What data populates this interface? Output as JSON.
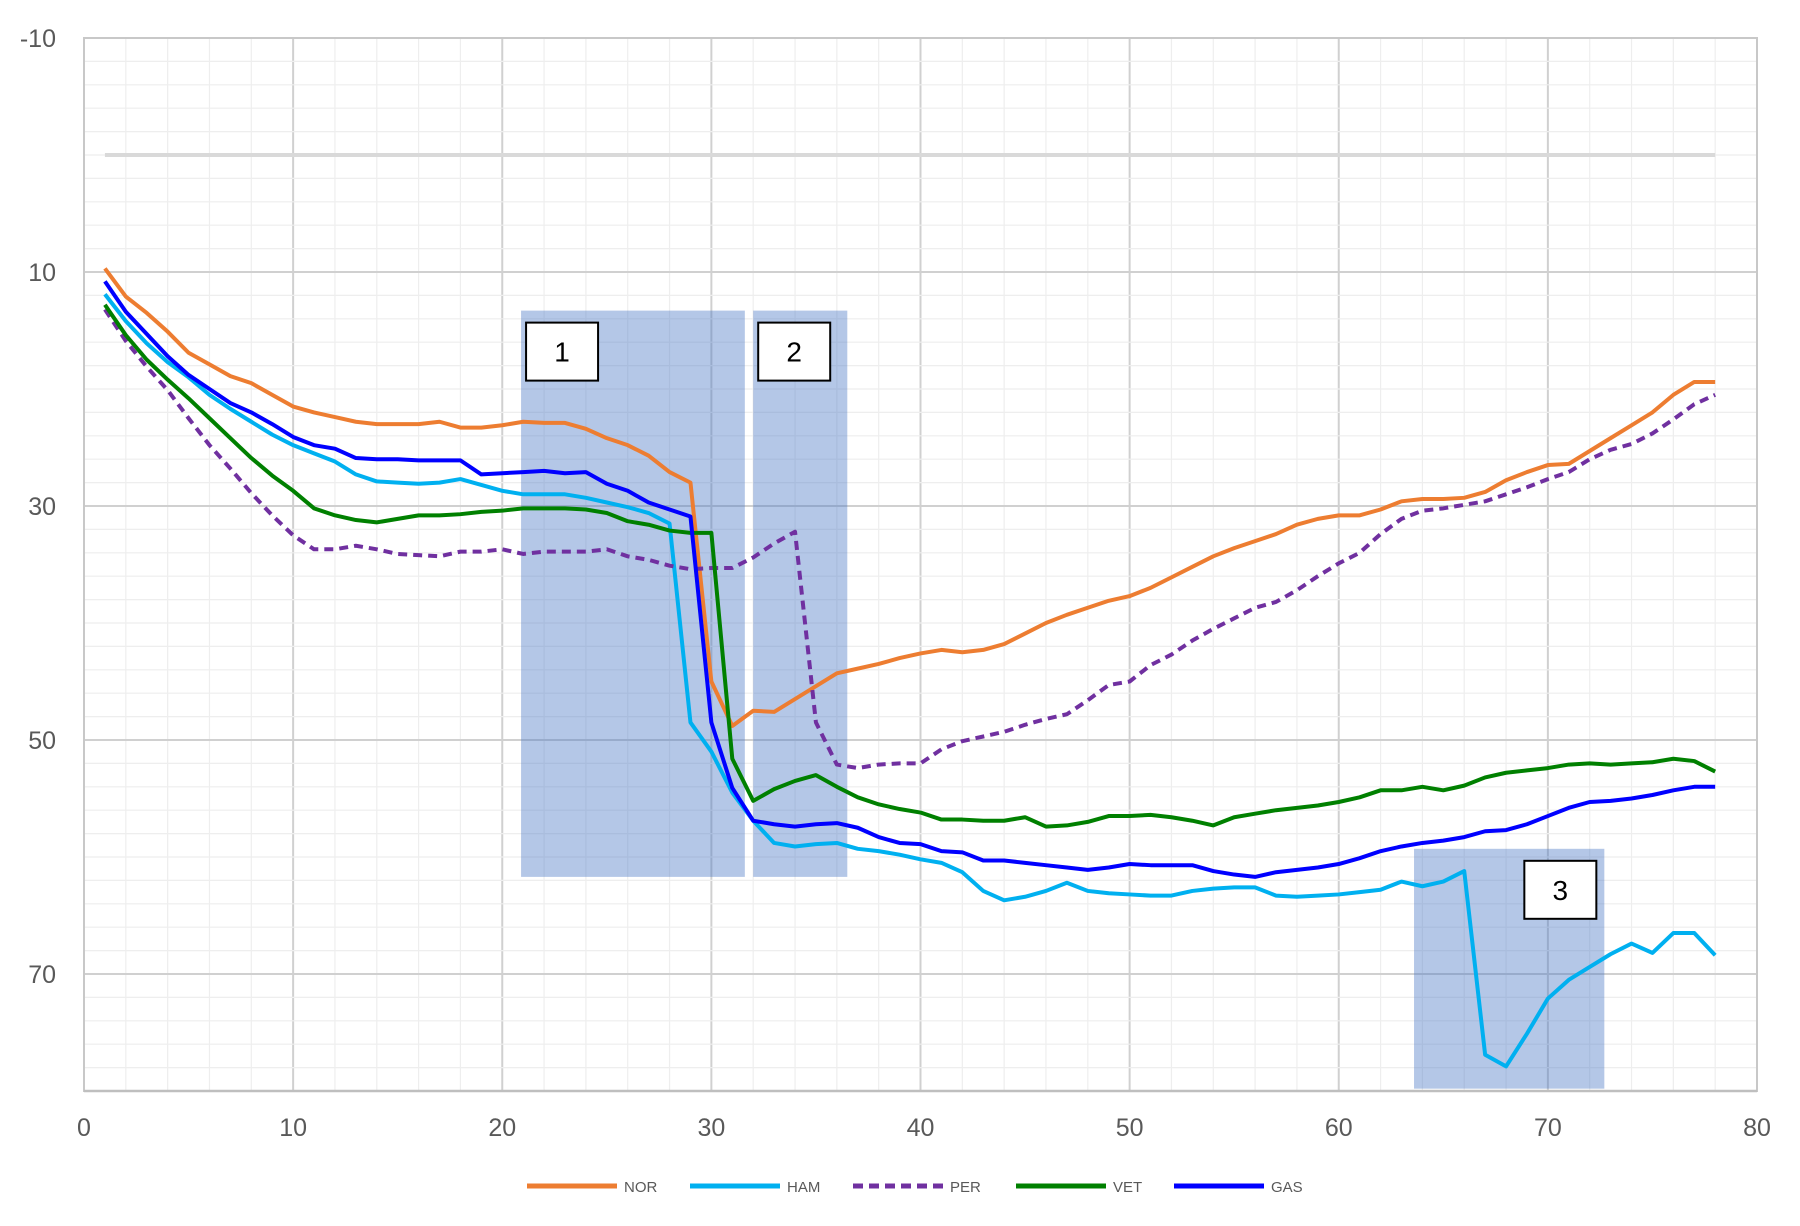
{
  "chart_data": {
    "type": "line",
    "title": "",
    "xlabel": "",
    "ylabel": "",
    "xlim": [
      0,
      80
    ],
    "ylim": [
      -10,
      80
    ],
    "y_inverted": true,
    "grid": true,
    "legend_position": "bottom",
    "x_ticks": [
      "0",
      "10",
      "20",
      "30",
      "40",
      "50",
      "60",
      "70",
      "80"
    ],
    "y_ticks": [
      "-10",
      "10",
      "30",
      "50",
      "70"
    ],
    "reference_line": {
      "y": 0,
      "x_from": 1,
      "x_to": 78,
      "color": "#D9D9D9"
    },
    "x": [
      1,
      2,
      3,
      4,
      5,
      6,
      7,
      8,
      9,
      10,
      11,
      12,
      13,
      14,
      15,
      16,
      17,
      18,
      19,
      20,
      21,
      22,
      23,
      24,
      25,
      26,
      27,
      28,
      29,
      30,
      31,
      32,
      33,
      34,
      35,
      36,
      37,
      38,
      39,
      40,
      41,
      42,
      43,
      44,
      45,
      46,
      47,
      48,
      49,
      50,
      51,
      52,
      53,
      54,
      55,
      56,
      57,
      58,
      59,
      60,
      61,
      62,
      63,
      64,
      65,
      66,
      67,
      68,
      69,
      70,
      71,
      72,
      73,
      74,
      75,
      76,
      77,
      78
    ],
    "series": [
      {
        "name": "NOR",
        "color": "#ED7D31",
        "dashed": false,
        "values": [
          9.7,
          12.1,
          13.5,
          15.1,
          16.9,
          17.9,
          18.9,
          19.5,
          20.5,
          21.5,
          22,
          22.4,
          22.8,
          23,
          23,
          23,
          22.8,
          23.3,
          23.3,
          23.1,
          22.8,
          22.9,
          22.9,
          23.4,
          24.2,
          24.8,
          25.7,
          27.1,
          28,
          45,
          48.8,
          47.5,
          47.6,
          46.5,
          45.4,
          44.3,
          43.9,
          43.5,
          43,
          42.6,
          42.3,
          42.5,
          42.3,
          41.8,
          40.9,
          40,
          39.3,
          38.7,
          38.1,
          37.7,
          37,
          36.1,
          35.2,
          34.3,
          33.6,
          33,
          32.4,
          31.6,
          31.1,
          30.8,
          30.8,
          30.3,
          29.6,
          29.4,
          29.4,
          29.3,
          28.8,
          27.8,
          27.1,
          26.5,
          26.4,
          25.3,
          24.2,
          23.1,
          22,
          20.5,
          19.4,
          19.4
        ]
      },
      {
        "name": "HAM",
        "color": "#00B0F0",
        "dashed": false,
        "values": [
          11.9,
          14.2,
          16.1,
          17.7,
          19,
          20.5,
          21.7,
          22.8,
          23.9,
          24.8,
          25.5,
          26.2,
          27.3,
          27.9,
          28,
          28.1,
          28,
          27.7,
          28.2,
          28.7,
          29,
          29,
          29,
          29.3,
          29.7,
          30.1,
          30.6,
          31.5,
          48.5,
          51,
          54.5,
          56.9,
          58.8,
          59.1,
          58.9,
          58.8,
          59.3,
          59.5,
          59.8,
          60.2,
          60.5,
          61.3,
          62.9,
          63.7,
          63.4,
          62.9,
          62.2,
          62.9,
          63.1,
          63.2,
          63.3,
          63.3,
          62.9,
          62.7,
          62.6,
          62.6,
          63.3,
          63.4,
          63.3,
          63.2,
          63,
          62.8,
          62.1,
          62.5,
          62.1,
          61.2,
          76.9,
          77.9,
          75.1,
          72.1,
          70.5,
          69.4,
          68.3,
          67.4,
          68.2,
          66.5,
          66.5,
          68.4
        ]
      },
      {
        "name": "PER",
        "color": "#7030A0",
        "dashed": true,
        "values": [
          13.2,
          15.9,
          18.1,
          20.1,
          22.5,
          24.8,
          26.8,
          28.9,
          30.8,
          32.5,
          33.7,
          33.7,
          33.4,
          33.7,
          34.1,
          34.2,
          34.3,
          33.9,
          33.9,
          33.7,
          34.1,
          33.9,
          33.9,
          33.9,
          33.7,
          34.3,
          34.6,
          35.1,
          35.4,
          35.3,
          35.3,
          34.4,
          33.2,
          32.2,
          48.5,
          52.1,
          52.4,
          52.1,
          52,
          52,
          50.8,
          50.1,
          49.7,
          49.3,
          48.7,
          48.2,
          47.8,
          46.6,
          45.3,
          45,
          43.6,
          42.7,
          41.5,
          40.5,
          39.6,
          38.7,
          38.2,
          37.2,
          36,
          34.9,
          34,
          32.4,
          31.1,
          30.4,
          30.2,
          29.9,
          29.6,
          29,
          28.4,
          27.7,
          27.1,
          26,
          25.2,
          24.7,
          23.8,
          22.6,
          21.3,
          20.5
        ]
      },
      {
        "name": "VET",
        "color": "#008000",
        "dashed": false,
        "values": [
          12.8,
          15.4,
          17.5,
          19.2,
          20.8,
          22.5,
          24.2,
          25.9,
          27.4,
          28.7,
          30.2,
          30.8,
          31.2,
          31.4,
          31.1,
          30.8,
          30.8,
          30.7,
          30.5,
          30.4,
          30.2,
          30.2,
          30.2,
          30.3,
          30.6,
          31.3,
          31.6,
          32.1,
          32.3,
          32.3,
          51.6,
          55.2,
          54.2,
          53.5,
          53,
          54,
          54.9,
          55.5,
          55.9,
          56.2,
          56.8,
          56.8,
          56.9,
          56.9,
          56.6,
          57.4,
          57.3,
          57,
          56.5,
          56.5,
          56.4,
          56.6,
          56.9,
          57.3,
          56.6,
          56.3,
          56,
          55.8,
          55.6,
          55.3,
          54.9,
          54.3,
          54.3,
          54,
          54.3,
          53.9,
          53.2,
          52.8,
          52.6,
          52.4,
          52.1,
          52,
          52.1,
          52,
          51.9,
          51.6,
          51.8,
          52.7
        ]
      },
      {
        "name": "GAS",
        "color": "#0000FF",
        "dashed": false,
        "values": [
          10.8,
          13.4,
          15.3,
          17.2,
          18.8,
          20,
          21.2,
          22,
          23,
          24.1,
          24.8,
          25.1,
          25.9,
          26,
          26,
          26.1,
          26.1,
          26.1,
          27.3,
          27.2,
          27.1,
          27,
          27.2,
          27.1,
          28.1,
          28.7,
          29.7,
          30.3,
          30.9,
          48.5,
          54.1,
          56.9,
          57.2,
          57.4,
          57.2,
          57.1,
          57.5,
          58.3,
          58.8,
          58.9,
          59.5,
          59.6,
          60.3,
          60.3,
          60.5,
          60.7,
          60.9,
          61.1,
          60.9,
          60.6,
          60.7,
          60.7,
          60.7,
          61.2,
          61.5,
          61.7,
          61.3,
          61.1,
          60.9,
          60.6,
          60.1,
          59.5,
          59.1,
          58.8,
          58.6,
          58.3,
          57.8,
          57.7,
          57.2,
          56.5,
          55.8,
          55.3,
          55.2,
          55,
          54.7,
          54.3,
          54,
          54
        ]
      }
    ],
    "annotations": [
      {
        "label": "1",
        "x_range": [
          20.9,
          31.6
        ],
        "y_range": [
          13.3,
          61.7
        ],
        "fill": "#4472C4"
      },
      {
        "label": "2",
        "x_range": [
          32.0,
          36.5
        ],
        "y_range": [
          13.3,
          61.7
        ],
        "fill": "#4472C4"
      },
      {
        "label": "3",
        "x_range": [
          63.6,
          72.7
        ],
        "y_range": [
          59.3,
          79.8
        ],
        "fill": "#4472C4"
      }
    ]
  }
}
